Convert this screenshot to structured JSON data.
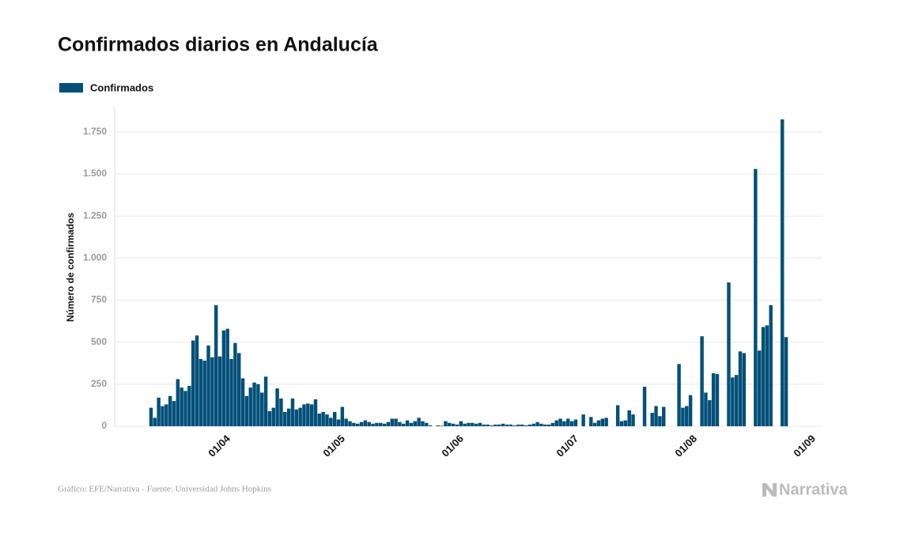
{
  "chart_data": {
    "type": "bar",
    "title": "Confirmados diarios en Andalucía",
    "y_label": "Número de confirmados",
    "source": "Gráfico: EFE/Narrativa - Fuente: Universidad Johns Hopkins",
    "brand": "Narrativa",
    "x": [
      "12/03",
      "13/03",
      "14/03",
      "15/03",
      "16/03",
      "17/03",
      "18/03",
      "19/03",
      "20/03",
      "21/03",
      "22/03",
      "23/03",
      "24/03",
      "25/03",
      "26/03",
      "27/03",
      "28/03",
      "29/03",
      "30/03",
      "31/03",
      "01/04",
      "02/04",
      "03/04",
      "04/04",
      "05/04",
      "06/04",
      "07/04",
      "08/04",
      "09/04",
      "10/04",
      "11/04",
      "12/04",
      "13/04",
      "14/04",
      "15/04",
      "16/04",
      "17/04",
      "18/04",
      "19/04",
      "20/04",
      "21/04",
      "22/04",
      "23/04",
      "24/04",
      "25/04",
      "26/04",
      "27/04",
      "28/04",
      "29/04",
      "30/04",
      "01/05",
      "02/05",
      "03/05",
      "04/05",
      "05/05",
      "06/05",
      "07/05",
      "08/05",
      "09/05",
      "10/05",
      "11/05",
      "12/05",
      "13/05",
      "14/05",
      "15/05",
      "16/05",
      "17/05",
      "18/05",
      "19/05",
      "20/05",
      "21/05",
      "22/05",
      "23/05",
      "24/05",
      "26/05",
      "27/05",
      "28/05",
      "29/05",
      "30/05",
      "31/05",
      "01/06",
      "02/06",
      "03/06",
      "04/06",
      "05/06",
      "06/06",
      "07/06",
      "08/06",
      "09/06",
      "10/06",
      "11/06",
      "12/06",
      "13/06",
      "14/06",
      "15/06",
      "16/06",
      "17/06",
      "18/06",
      "19/06",
      "20/06",
      "21/06",
      "22/06",
      "23/06",
      "24/06",
      "25/06",
      "26/06",
      "27/06",
      "28/06",
      "29/06",
      "30/06",
      "01/07",
      "03/07",
      "05/07",
      "06/07",
      "07/07",
      "08/07",
      "09/07",
      "12/07",
      "13/07",
      "14/07",
      "15/07",
      "16/07",
      "19/07",
      "21/07",
      "22/07",
      "23/07",
      "24/07",
      "28/07",
      "29/07",
      "30/07",
      "31/07",
      "03/08",
      "04/08",
      "05/08",
      "06/08",
      "07/08",
      "10/08",
      "11/08",
      "12/08",
      "13/08",
      "14/08",
      "17/08",
      "18/08",
      "19/08",
      "20/08",
      "21/08",
      "24/08",
      "25/08"
    ],
    "series": [
      {
        "name": "Confirmados",
        "color": "#03507a",
        "values": [
          110,
          50,
          170,
          120,
          130,
          180,
          150,
          280,
          230,
          210,
          240,
          510,
          540,
          400,
          390,
          480,
          410,
          720,
          415,
          570,
          580,
          400,
          495,
          435,
          285,
          180,
          230,
          260,
          250,
          200,
          295,
          90,
          110,
          225,
          165,
          85,
          105,
          165,
          100,
          110,
          130,
          135,
          130,
          160,
          75,
          85,
          70,
          50,
          85,
          40,
          115,
          45,
          30,
          20,
          15,
          25,
          35,
          25,
          15,
          20,
          20,
          15,
          25,
          45,
          45,
          25,
          15,
          35,
          20,
          30,
          50,
          30,
          20,
          5,
          5,
          3,
          30,
          20,
          15,
          10,
          30,
          15,
          20,
          20,
          15,
          20,
          10,
          10,
          5,
          10,
          10,
          15,
          10,
          10,
          5,
          10,
          10,
          5,
          10,
          15,
          25,
          15,
          10,
          10,
          20,
          35,
          45,
          30,
          45,
          30,
          40,
          70,
          55,
          20,
          35,
          45,
          50,
          125,
          30,
          35,
          95,
          70,
          235,
          80,
          120,
          60,
          115,
          370,
          110,
          120,
          185,
          535,
          200,
          155,
          315,
          310,
          855,
          290,
          305,
          445,
          435,
          1530,
          450,
          590,
          600,
          720,
          1825,
          530
        ]
      }
    ],
    "xlim": [
      "03/03",
      "04/09"
    ],
    "xticks": [
      "01/04",
      "01/05",
      "01/06",
      "01/07",
      "01/08",
      "01/09"
    ],
    "ylim": [
      0,
      1900
    ],
    "yticks": [
      0,
      250,
      500,
      750,
      {
        "value": 1000,
        "label": "1.000"
      },
      {
        "value": 1250,
        "label": "1.250"
      },
      {
        "value": 1500,
        "label": "1.500"
      },
      {
        "value": 1750,
        "label": "1.750"
      }
    ],
    "grid": true
  }
}
